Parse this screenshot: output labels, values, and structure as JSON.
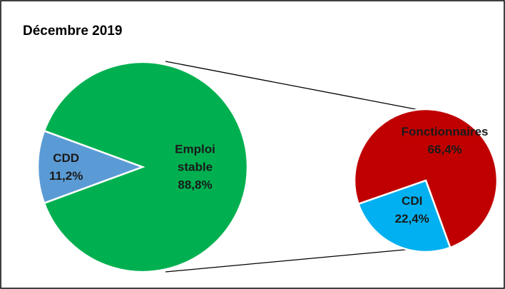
{
  "chart_data": [
    {
      "type": "pie",
      "title": "Décembre 2019",
      "categories": [
        "CDD",
        "Emploi stable"
      ],
      "values": [
        11.2,
        88.8
      ],
      "value_labels": [
        "11,2%",
        "88,8%"
      ],
      "colors": [
        "#5b9bd5",
        "#00b050"
      ]
    },
    {
      "type": "pie",
      "categories": [
        "Fonctionnaires",
        "CDI"
      ],
      "values": [
        66.4,
        22.4
      ],
      "value_labels": [
        "66,4%",
        "22,4%"
      ],
      "colors": [
        "#c00000",
        "#00b0f0"
      ]
    }
  ]
}
